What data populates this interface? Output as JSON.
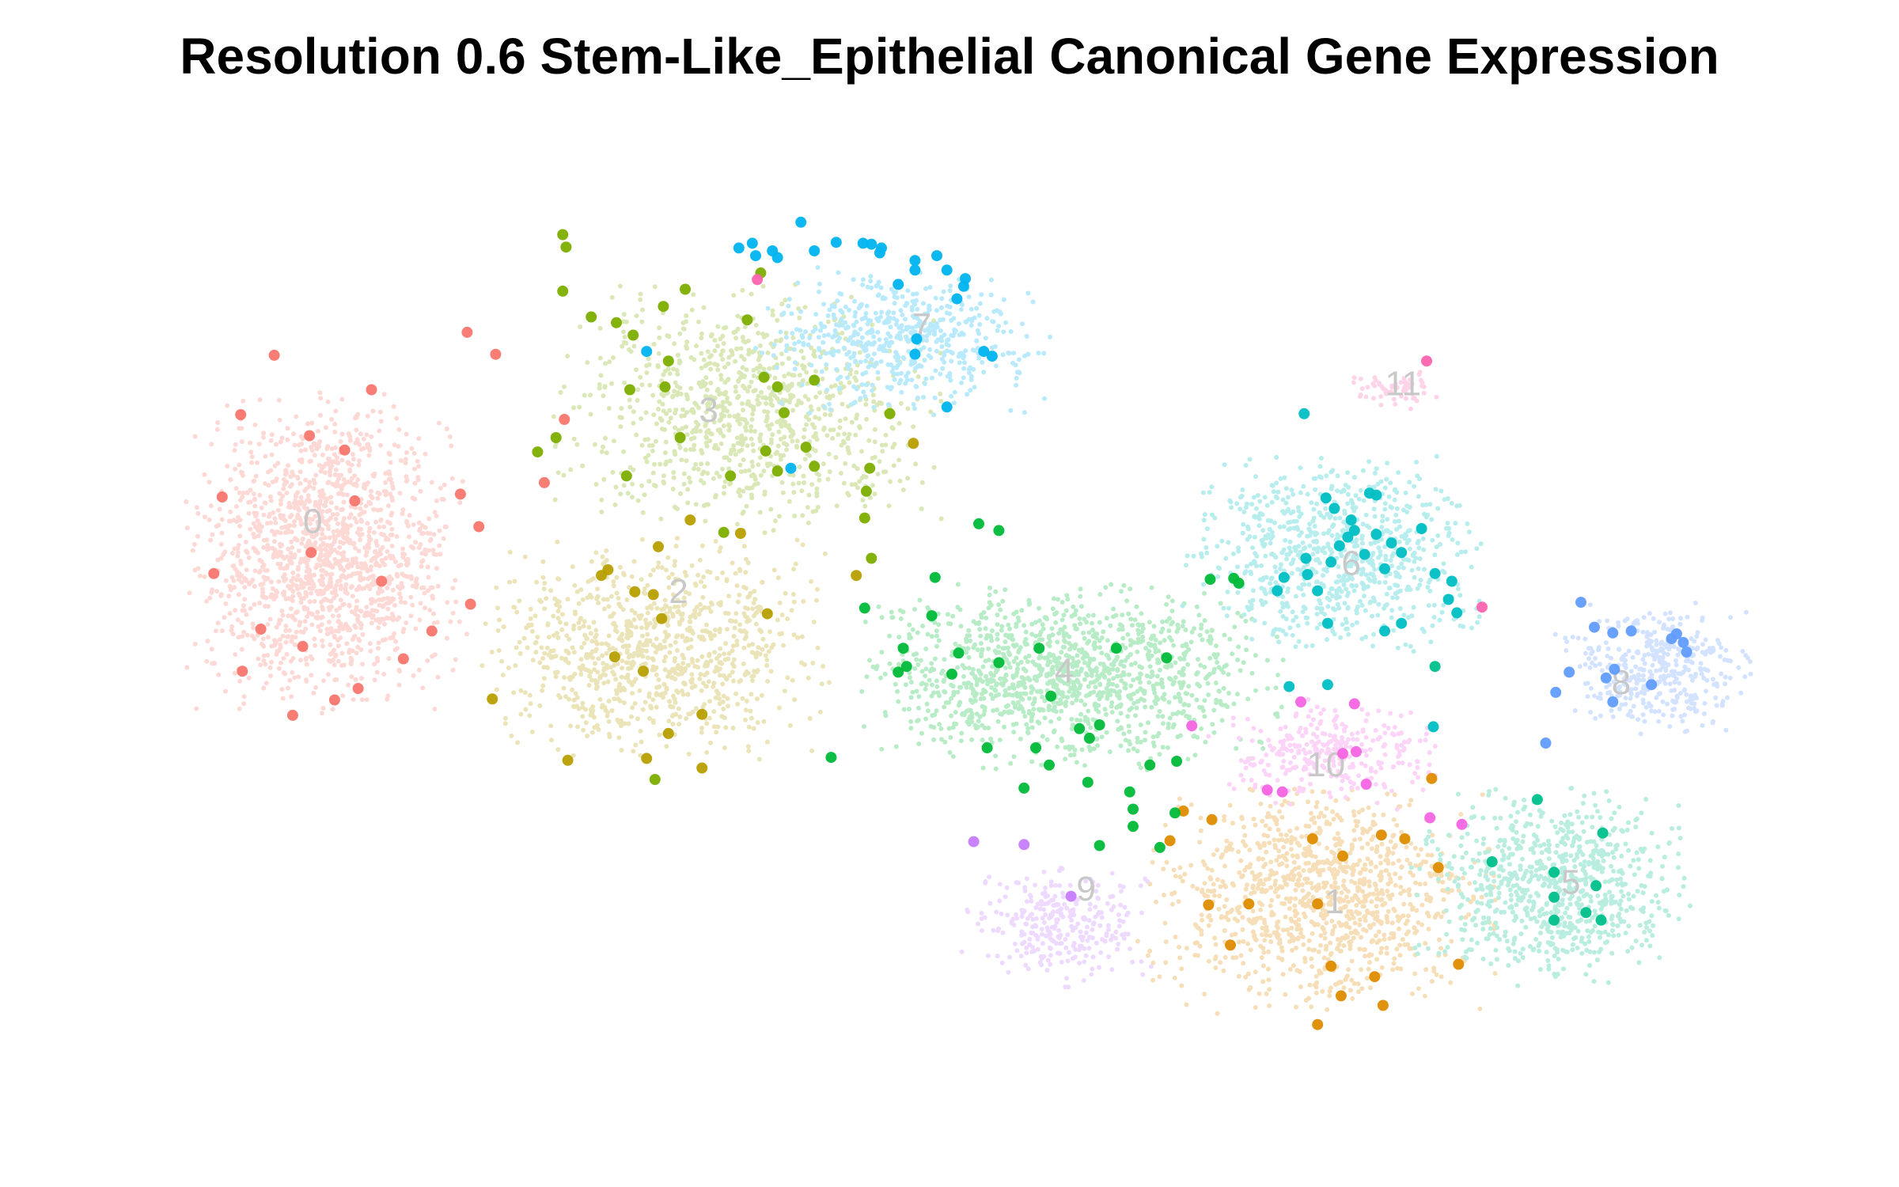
{
  "chart_data": {
    "type": "scatter",
    "title": "Resolution 0.6 Stem-Like_Epithelial Canonical Gene Expression",
    "xlabel": "",
    "ylabel": "",
    "axes_visible": false,
    "grid": false,
    "legend": "none",
    "xlim": [
      0,
      100
    ],
    "ylim": [
      0,
      100
    ],
    "clusters": [
      {
        "name": "0",
        "color": "#F8766D",
        "center": [
          12.0,
          58.0
        ],
        "spread": [
          6.5,
          13.0
        ],
        "bg_count": 1500,
        "highlighted": [
          [
            8.8,
            78.6
          ],
          [
            6.8,
            72.4
          ],
          [
            10.9,
            70.2
          ],
          [
            13.0,
            68.7
          ],
          [
            14.6,
            75.0
          ],
          [
            5.7,
            63.8
          ],
          [
            13.6,
            63.4
          ],
          [
            11.0,
            58.0
          ],
          [
            15.2,
            55.0
          ],
          [
            5.2,
            55.8
          ],
          [
            8.0,
            50.0
          ],
          [
            10.5,
            48.2
          ],
          [
            6.9,
            45.6
          ],
          [
            13.8,
            43.8
          ],
          [
            16.5,
            46.9
          ],
          [
            9.9,
            41.0
          ],
          [
            12.4,
            42.6
          ],
          [
            18.2,
            49.8
          ],
          [
            19.9,
            64.1
          ],
          [
            20.5,
            52.6
          ],
          [
            21.0,
            60.7
          ],
          [
            26.1,
            71.9
          ]
        ],
        "extra_highlighted": [
          [
            20.3,
            81.0
          ],
          [
            22.0,
            78.7
          ],
          [
            24.9,
            65.3
          ]
        ]
      },
      {
        "name": "1",
        "color": "#DE8C00",
        "center": [
          71.2,
          22.0
        ],
        "spread": [
          8.0,
          9.5
        ],
        "bg_count": 1100,
        "highlighted": [
          [
            63.0,
            31.0
          ],
          [
            64.7,
            30.1
          ],
          [
            62.2,
            27.9
          ],
          [
            70.7,
            28.1
          ],
          [
            72.5,
            26.3
          ],
          [
            74.8,
            28.5
          ],
          [
            76.2,
            28.1
          ],
          [
            64.5,
            21.2
          ],
          [
            66.9,
            21.3
          ],
          [
            71.0,
            21.3
          ],
          [
            78.2,
            25.1
          ],
          [
            65.8,
            17.0
          ],
          [
            71.8,
            14.8
          ],
          [
            72.4,
            11.7
          ],
          [
            74.4,
            13.7
          ],
          [
            74.9,
            10.7
          ],
          [
            71.0,
            8.7
          ],
          [
            79.4,
            15.0
          ],
          [
            77.8,
            34.4
          ]
        ]
      },
      {
        "name": "2",
        "color": "#B79F00",
        "center": [
          31.5,
          48.0
        ],
        "spread": [
          8.0,
          9.0
        ],
        "bg_count": 950,
        "highlighted": [
          [
            28.7,
            56.2
          ],
          [
            31.7,
            58.6
          ],
          [
            33.6,
            61.4
          ],
          [
            36.6,
            60.0
          ],
          [
            28.3,
            55.6
          ],
          [
            31.4,
            53.6
          ],
          [
            31.9,
            51.1
          ],
          [
            30.3,
            53.9
          ],
          [
            29.1,
            47.1
          ],
          [
            30.8,
            45.6
          ],
          [
            38.2,
            51.6
          ],
          [
            32.3,
            39.1
          ],
          [
            34.3,
            41.1
          ],
          [
            31.0,
            36.5
          ],
          [
            34.3,
            35.5
          ],
          [
            26.3,
            36.3
          ],
          [
            21.8,
            42.7
          ],
          [
            43.5,
            55.6
          ],
          [
            46.9,
            69.4
          ]
        ]
      },
      {
        "name": "3",
        "color": "#7CAE00",
        "center": [
          37.0,
          73.0
        ],
        "spread": [
          9.0,
          10.0
        ],
        "bg_count": 950,
        "highlighted": [
          [
            26.0,
            85.3
          ],
          [
            27.7,
            82.6
          ],
          [
            29.2,
            82.0
          ],
          [
            30.2,
            80.7
          ],
          [
            32.0,
            83.7
          ],
          [
            33.3,
            85.5
          ],
          [
            32.3,
            78.0
          ],
          [
            30.0,
            75.0
          ],
          [
            32.1,
            75.3
          ],
          [
            37.0,
            82.3
          ],
          [
            38.0,
            76.3
          ],
          [
            38.8,
            75.3
          ],
          [
            39.2,
            72.6
          ],
          [
            41.0,
            76.0
          ],
          [
            40.5,
            69.0
          ],
          [
            38.8,
            66.5
          ],
          [
            36.0,
            66.0
          ],
          [
            33.0,
            70.0
          ],
          [
            29.8,
            66.0
          ],
          [
            35.6,
            60.1
          ],
          [
            38.1,
            68.6
          ],
          [
            44.3,
            66.8
          ],
          [
            44.1,
            64.4
          ],
          [
            44.0,
            61.6
          ],
          [
            41.0,
            67.0
          ],
          [
            45.5,
            72.5
          ],
          [
            24.5,
            68.5
          ],
          [
            25.6,
            70.0
          ],
          [
            26.0,
            91.2
          ],
          [
            26.2,
            89.9
          ],
          [
            37.8,
            87.2
          ],
          [
            44.4,
            57.4
          ],
          [
            31.5,
            34.3
          ]
        ]
      },
      {
        "name": "4",
        "color": "#00BA38",
        "center": [
          56.0,
          45.0
        ],
        "spread": [
          10.0,
          7.5
        ],
        "bg_count": 1300,
        "highlighted": [
          [
            50.8,
            61.0
          ],
          [
            52.0,
            60.3
          ],
          [
            48.2,
            55.4
          ],
          [
            48.0,
            51.4
          ],
          [
            46.3,
            48.0
          ],
          [
            46.5,
            46.1
          ],
          [
            49.6,
            47.5
          ],
          [
            46.0,
            45.5
          ],
          [
            49.2,
            45.3
          ],
          [
            52.0,
            46.5
          ],
          [
            54.4,
            48.0
          ],
          [
            55.1,
            43.0
          ],
          [
            58.0,
            40.0
          ],
          [
            57.4,
            38.6
          ],
          [
            51.3,
            37.6
          ],
          [
            54.2,
            37.6
          ],
          [
            56.8,
            39.6
          ],
          [
            55.0,
            35.8
          ],
          [
            53.5,
            33.4
          ],
          [
            57.3,
            34.0
          ],
          [
            59.8,
            33.0
          ],
          [
            60.0,
            31.2
          ],
          [
            62.5,
            30.8
          ],
          [
            61.0,
            35.8
          ],
          [
            62.6,
            36.2
          ],
          [
            60.0,
            29.4
          ],
          [
            58.0,
            27.4
          ],
          [
            61.6,
            27.2
          ],
          [
            64.6,
            55.2
          ],
          [
            66.0,
            55.3
          ],
          [
            66.3,
            54.8
          ],
          [
            62.0,
            47.0
          ],
          [
            59.0,
            48.0
          ],
          [
            44.0,
            52.2
          ],
          [
            42.0,
            36.6
          ]
        ]
      },
      {
        "name": "5",
        "color": "#00C08B",
        "center": [
          85.0,
          23.0
        ],
        "spread": [
          6.5,
          8.0
        ],
        "bg_count": 800,
        "highlighted": [
          [
            88.0,
            28.7
          ],
          [
            85.1,
            24.6
          ],
          [
            85.1,
            22.0
          ],
          [
            87.6,
            23.2
          ],
          [
            87.0,
            20.4
          ],
          [
            85.1,
            19.6
          ],
          [
            87.9,
            19.6
          ],
          [
            81.4,
            25.7
          ],
          [
            84.1,
            32.2
          ],
          [
            78.0,
            46.1
          ]
        ]
      },
      {
        "name": "6",
        "color": "#00BFC4",
        "center": [
          72.0,
          58.0
        ],
        "spread": [
          7.0,
          8.0
        ],
        "bg_count": 800,
        "highlighted": [
          [
            70.2,
            72.5
          ],
          [
            71.5,
            63.7
          ],
          [
            72.0,
            62.6
          ],
          [
            73.0,
            61.4
          ],
          [
            74.1,
            64.2
          ],
          [
            74.5,
            64.0
          ],
          [
            73.2,
            60.3
          ],
          [
            72.8,
            59.6
          ],
          [
            74.5,
            59.9
          ],
          [
            75.4,
            59.0
          ],
          [
            73.8,
            57.8
          ],
          [
            72.3,
            58.7
          ],
          [
            71.8,
            57.0
          ],
          [
            70.3,
            57.4
          ],
          [
            70.4,
            55.7
          ],
          [
            69.0,
            55.4
          ],
          [
            68.6,
            54.0
          ],
          [
            71.0,
            54.0
          ],
          [
            75.0,
            56.3
          ],
          [
            76.0,
            58.0
          ],
          [
            77.2,
            60.5
          ],
          [
            78.0,
            55.8
          ],
          [
            79.0,
            55.0
          ],
          [
            78.8,
            53.1
          ],
          [
            79.3,
            51.7
          ],
          [
            75.0,
            49.8
          ],
          [
            76.0,
            50.6
          ],
          [
            71.6,
            50.6
          ],
          [
            69.3,
            44.0
          ],
          [
            71.6,
            44.2
          ],
          [
            77.9,
            39.8
          ]
        ]
      },
      {
        "name": "7",
        "color": "#00B4F0",
        "center": [
          46.0,
          80.0
        ],
        "spread": [
          7.0,
          6.0
        ],
        "bg_count": 550,
        "highlighted": [
          [
            40.2,
            92.5
          ],
          [
            37.5,
            89.0
          ],
          [
            38.5,
            89.5
          ],
          [
            41.0,
            89.5
          ],
          [
            42.3,
            90.4
          ],
          [
            43.9,
            90.3
          ],
          [
            44.4,
            90.2
          ],
          [
            44.9,
            89.3
          ],
          [
            45.0,
            89.8
          ],
          [
            47.0,
            88.5
          ],
          [
            48.3,
            89.0
          ],
          [
            47.0,
            87.5
          ],
          [
            48.9,
            87.5
          ],
          [
            50.0,
            86.6
          ],
          [
            49.9,
            85.8
          ],
          [
            49.5,
            84.5
          ],
          [
            46.0,
            86.0
          ],
          [
            36.5,
            89.8
          ],
          [
            37.3,
            90.3
          ],
          [
            38.8,
            88.8
          ],
          [
            47.1,
            80.3
          ],
          [
            47.0,
            78.7
          ],
          [
            51.1,
            79.0
          ],
          [
            51.6,
            78.5
          ],
          [
            48.9,
            73.2
          ],
          [
            31.0,
            79.0
          ],
          [
            39.6,
            66.8
          ]
        ]
      },
      {
        "name": "8",
        "color": "#619CFF",
        "center": [
          91.0,
          46.0
        ],
        "spread": [
          4.5,
          5.5
        ],
        "bg_count": 400,
        "highlighted": [
          [
            86.7,
            52.8
          ],
          [
            87.5,
            50.2
          ],
          [
            88.6,
            49.6
          ],
          [
            89.7,
            49.8
          ],
          [
            92.4,
            49.5
          ],
          [
            92.1,
            49.0
          ],
          [
            92.8,
            48.6
          ],
          [
            93.0,
            47.6
          ],
          [
            86.0,
            45.5
          ],
          [
            88.2,
            44.9
          ],
          [
            88.7,
            45.8
          ],
          [
            88.6,
            42.4
          ],
          [
            90.9,
            44.2
          ],
          [
            85.2,
            43.4
          ],
          [
            84.6,
            38.1
          ]
        ]
      },
      {
        "name": "9",
        "color": "#C77CFF",
        "center": [
          55.5,
          19.0
        ],
        "spread": [
          4.5,
          5.0
        ],
        "bg_count": 300,
        "highlighted": [
          [
            50.5,
            27.8
          ],
          [
            53.5,
            27.5
          ],
          [
            56.3,
            22.1
          ]
        ]
      },
      {
        "name": "10",
        "color": "#F564E3",
        "center": [
          71.5,
          37.0
        ],
        "spread": [
          5.5,
          4.5
        ],
        "bg_count": 300,
        "highlighted": [
          [
            70.0,
            42.4
          ],
          [
            73.2,
            42.2
          ],
          [
            72.5,
            37.0
          ],
          [
            73.3,
            37.2
          ],
          [
            73.9,
            33.8
          ],
          [
            68.0,
            33.2
          ],
          [
            68.9,
            33.0
          ],
          [
            63.5,
            39.9
          ],
          [
            79.6,
            29.6
          ],
          [
            77.7,
            30.3
          ]
        ]
      },
      {
        "name": "11",
        "color": "#FF64B0",
        "center": [
          75.5,
          75.0
        ],
        "spread": [
          2.2,
          1.6
        ],
        "bg_count": 60,
        "highlighted": [
          [
            77.5,
            78.0
          ],
          [
            80.8,
            52.3
          ],
          [
            37.6,
            86.5
          ]
        ]
      }
    ],
    "cluster_labels": [
      {
        "text": "0",
        "at": [
          11.1,
          61.0
        ]
      },
      {
        "text": "1",
        "at": [
          72.0,
          21.3
        ]
      },
      {
        "text": "2",
        "at": [
          32.9,
          53.7
        ]
      },
      {
        "text": "3",
        "at": [
          34.7,
          72.6
        ]
      },
      {
        "text": "4",
        "at": [
          55.9,
          45.4
        ]
      },
      {
        "text": "5",
        "at": [
          86.1,
          23.3
        ]
      },
      {
        "text": "6",
        "at": [
          73.0,
          56.6
        ]
      },
      {
        "text": "7",
        "at": [
          47.4,
          81.4
        ]
      },
      {
        "text": "8",
        "at": [
          89.1,
          44.2
        ]
      },
      {
        "text": "9",
        "at": [
          57.2,
          22.6
        ]
      },
      {
        "text": "10",
        "at": [
          71.5,
          35.6
        ]
      },
      {
        "text": "11",
        "at": [
          76.1,
          75.4
        ]
      }
    ]
  }
}
